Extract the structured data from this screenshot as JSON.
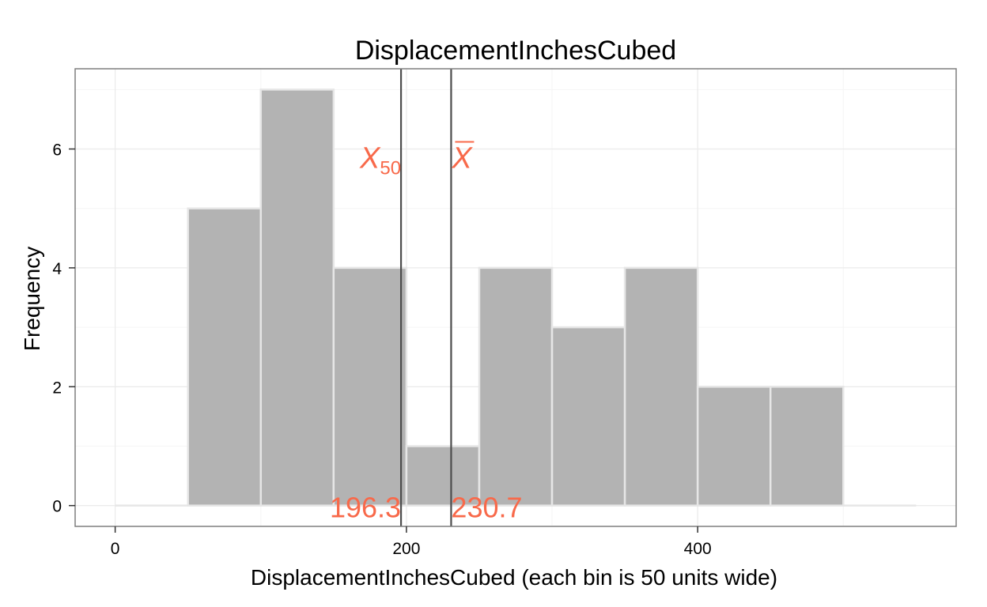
{
  "chart_data": {
    "type": "bar",
    "title": "DisplacementInchesCubed",
    "xlabel": "DisplacementInchesCubed (each bin is 50 units wide)",
    "ylabel": "Frequency",
    "bin_width": 50,
    "bins": [
      {
        "x0": 0,
        "x1": 50,
        "count": 0
      },
      {
        "x0": 50,
        "x1": 100,
        "count": 5
      },
      {
        "x0": 100,
        "x1": 150,
        "count": 7
      },
      {
        "x0": 150,
        "x1": 200,
        "count": 4
      },
      {
        "x0": 200,
        "x1": 250,
        "count": 1
      },
      {
        "x0": 250,
        "x1": 300,
        "count": 4
      },
      {
        "x0": 300,
        "x1": 350,
        "count": 3
      },
      {
        "x0": 350,
        "x1": 400,
        "count": 4
      },
      {
        "x0": 400,
        "x1": 450,
        "count": 2
      },
      {
        "x0": 450,
        "x1": 500,
        "count": 2
      },
      {
        "x0": 500,
        "x1": 550,
        "count": 0
      }
    ],
    "xlim": [
      -27.5,
      577.5
    ],
    "ylim": [
      -0.35,
      7.35
    ],
    "x_ticks": [
      0,
      200,
      400
    ],
    "y_ticks": [
      0,
      2,
      4,
      6
    ],
    "grid": true,
    "bar_color": "#b3b3b3",
    "bar_edge_color": "#e6e6e6",
    "annotation_color": "#f8694a",
    "reference_lines": [
      {
        "name": "median",
        "symbol": "X",
        "subscript": "50",
        "value": 196.3,
        "label": "196.3"
      },
      {
        "name": "mean",
        "symbol": "X",
        "overline": true,
        "value": 230.7,
        "label": "230.7"
      }
    ]
  }
}
